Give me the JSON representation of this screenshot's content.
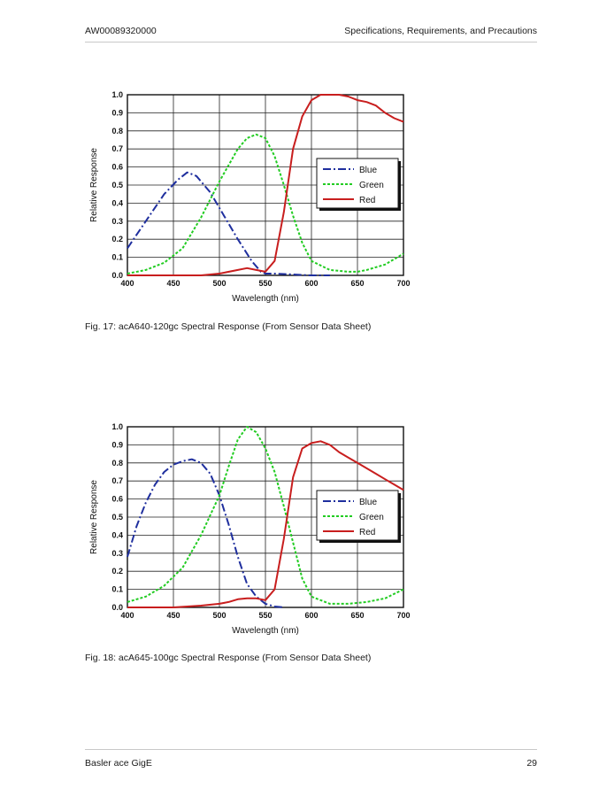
{
  "header": {
    "doc_id": "AW00089320000",
    "section": "Specifications, Requirements, and Precautions"
  },
  "footer": {
    "product": "Basler ace GigE",
    "page": "29"
  },
  "figures": [
    {
      "caption": "Fig. 17: acA640-120gc Spectral Response (From Sensor Data Sheet)"
    },
    {
      "caption": "Fig. 18: acA645-100gc Spectral Response (From Sensor Data Sheet)"
    }
  ],
  "colors": {
    "blue": "#1f2f9e",
    "green": "#22cc22",
    "red": "#c81e1e",
    "grid": "#222222"
  },
  "chart_data": [
    {
      "type": "line",
      "xlabel": "Wavelength (nm)",
      "ylabel": "Relative Response",
      "xlim": [
        400,
        700
      ],
      "ylim": [
        0,
        1.0
      ],
      "xticks": [
        "400",
        "450",
        "500",
        "550",
        "600",
        "650",
        "700"
      ],
      "yticks": [
        "0.0",
        "0.1",
        "0.2",
        "0.3",
        "0.4",
        "0.5",
        "0.6",
        "0.7",
        "0.8",
        "0.9",
        "1.0"
      ],
      "grid": true,
      "legend_position": "right",
      "series": [
        {
          "name": "Blue",
          "style": "dash-dot",
          "x": [
            400,
            420,
            440,
            455,
            465,
            475,
            490,
            505,
            520,
            535,
            545,
            550,
            560,
            580,
            600,
            620
          ],
          "y": [
            0.15,
            0.3,
            0.45,
            0.53,
            0.57,
            0.55,
            0.46,
            0.33,
            0.2,
            0.08,
            0.02,
            0.01,
            0.01,
            0.005,
            0.0,
            0.0
          ]
        },
        {
          "name": "Green",
          "style": "dotted",
          "x": [
            400,
            420,
            440,
            460,
            480,
            500,
            520,
            530,
            540,
            550,
            560,
            570,
            580,
            590,
            600,
            620,
            640,
            650,
            660,
            680,
            700
          ],
          "y": [
            0.01,
            0.03,
            0.07,
            0.15,
            0.32,
            0.52,
            0.7,
            0.76,
            0.78,
            0.76,
            0.66,
            0.5,
            0.33,
            0.18,
            0.08,
            0.03,
            0.02,
            0.02,
            0.03,
            0.06,
            0.12
          ]
        },
        {
          "name": "Red",
          "style": "solid",
          "x": [
            400,
            440,
            480,
            500,
            520,
            530,
            540,
            550,
            560,
            570,
            580,
            590,
            600,
            610,
            620,
            630,
            640,
            650,
            660,
            670,
            680,
            690,
            700
          ],
          "y": [
            0.0,
            0.0,
            0.0,
            0.01,
            0.03,
            0.04,
            0.03,
            0.02,
            0.08,
            0.35,
            0.7,
            0.88,
            0.97,
            1.0,
            1.0,
            1.0,
            0.99,
            0.97,
            0.96,
            0.94,
            0.9,
            0.87,
            0.85
          ]
        }
      ]
    },
    {
      "type": "line",
      "xlabel": "Wavelength (nm)",
      "ylabel": "Relative Response",
      "xlim": [
        400,
        700
      ],
      "ylim": [
        0,
        1.0
      ],
      "xticks": [
        "400",
        "450",
        "500",
        "550",
        "600",
        "650",
        "700"
      ],
      "yticks": [
        "0.0",
        "0.1",
        "0.2",
        "0.3",
        "0.4",
        "0.5",
        "0.6",
        "0.7",
        "0.8",
        "0.9",
        "1.0"
      ],
      "grid": true,
      "legend_position": "right",
      "series": [
        {
          "name": "Blue",
          "style": "dash-dot",
          "x": [
            400,
            410,
            420,
            430,
            440,
            450,
            460,
            470,
            480,
            490,
            500,
            510,
            520,
            530,
            540,
            550,
            560,
            570
          ],
          "y": [
            0.28,
            0.45,
            0.58,
            0.68,
            0.75,
            0.79,
            0.81,
            0.82,
            0.8,
            0.74,
            0.62,
            0.46,
            0.28,
            0.13,
            0.06,
            0.02,
            0.005,
            0.0
          ]
        },
        {
          "name": "Green",
          "style": "dotted",
          "x": [
            400,
            420,
            440,
            460,
            480,
            500,
            510,
            520,
            530,
            540,
            550,
            560,
            570,
            580,
            590,
            600,
            620,
            640,
            660,
            680,
            700
          ],
          "y": [
            0.03,
            0.06,
            0.12,
            0.22,
            0.4,
            0.62,
            0.78,
            0.93,
            1.0,
            0.97,
            0.88,
            0.75,
            0.56,
            0.36,
            0.16,
            0.06,
            0.02,
            0.02,
            0.03,
            0.05,
            0.1
          ]
        },
        {
          "name": "Red",
          "style": "solid",
          "x": [
            400,
            420,
            450,
            480,
            500,
            510,
            520,
            530,
            540,
            550,
            560,
            570,
            580,
            590,
            600,
            610,
            620,
            630,
            640,
            650,
            660,
            670,
            680,
            690,
            700
          ],
          "y": [
            0.0,
            0.0,
            0.0,
            0.01,
            0.02,
            0.03,
            0.045,
            0.05,
            0.05,
            0.04,
            0.1,
            0.38,
            0.72,
            0.88,
            0.91,
            0.92,
            0.9,
            0.86,
            0.83,
            0.8,
            0.77,
            0.74,
            0.71,
            0.68,
            0.65
          ]
        }
      ]
    }
  ]
}
